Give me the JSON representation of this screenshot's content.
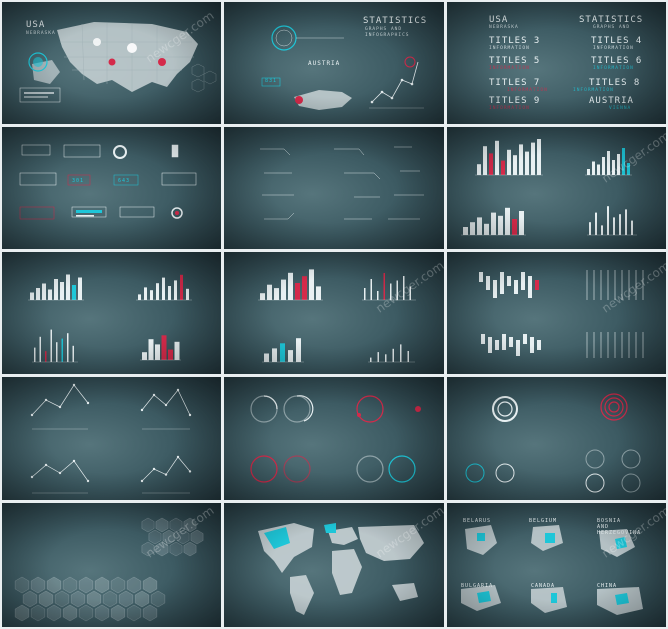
{
  "colors": {
    "accent_cyan": "#1ec6d8",
    "accent_red": "#d42a4a",
    "line": "#e8f0f2",
    "bg": "#3d5b63",
    "frame": "#e9eef0"
  },
  "watermark": "newcger.com",
  "tile1": {
    "title": "USA",
    "subtitle": "NEBRASKA"
  },
  "tile2": {
    "title": "STATISTICS",
    "subtitle1": "GRAPHS AND",
    "subtitle2": "INFOGRAPHICS",
    "country": "AUSTRIA",
    "value": "831"
  },
  "tile3": {
    "titles": [
      {
        "title": "USA",
        "sub": "NEBRASKA"
      },
      {
        "title": "STATISTICS",
        "sub": "GRAPHS AND"
      },
      {
        "title": "TITLES 3",
        "sub": "INFORMATION"
      },
      {
        "title": "TITLES 4",
        "sub": "INFORMATION"
      },
      {
        "title": "TITLES 5",
        "sub": "INFORMATION"
      },
      {
        "title": "TITLES 6",
        "sub": "INFORMATION"
      },
      {
        "title": "TITLES 7",
        "sub": "INFORMATION"
      },
      {
        "title": "TITLES 8",
        "sub": "INFORMATION"
      },
      {
        "title": "TITLES 9",
        "sub": "INFORMATION"
      },
      {
        "title": "AUSTRIA",
        "sub": "VIENNA"
      }
    ]
  },
  "tile4": {
    "values": [
      "301",
      "643"
    ]
  },
  "tile15": {
    "countries": [
      "BELARUS",
      "BELGIUM",
      "BOSNIA AND HERZEGOVINA",
      "BULGARIA",
      "CANADA",
      "CHINA"
    ]
  },
  "charts": {
    "bars_a": [
      30,
      80,
      60,
      95,
      40,
      70,
      55,
      85,
      65,
      90,
      100
    ],
    "bars_b": [
      20,
      45,
      35,
      60,
      80,
      50,
      70,
      90,
      40
    ],
    "bars_c": [
      25,
      40,
      55,
      35,
      70,
      60,
      85,
      50,
      75
    ],
    "bars_d": [
      40,
      70,
      30,
      90,
      55,
      65,
      80,
      45
    ],
    "line_a": [
      10,
      25,
      18,
      40,
      22
    ],
    "line_b": [
      15,
      30,
      20,
      35,
      10
    ]
  }
}
